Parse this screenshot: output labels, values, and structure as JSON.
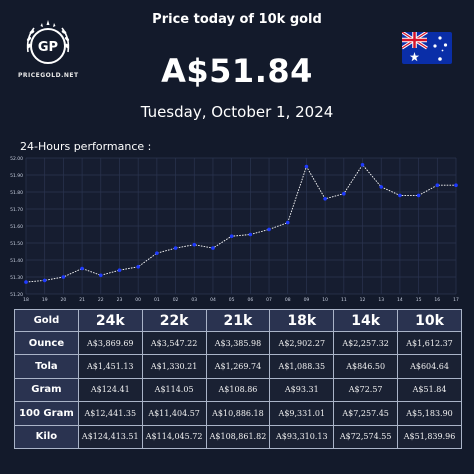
{
  "brand": {
    "logo_initials": "GP",
    "logo_text": "PRICEGOLD.NET"
  },
  "header": {
    "title": "Price today of 10k gold"
  },
  "flag_icon": "australia-flag-icon",
  "price": "A$51.84",
  "date": "Tuesday, October 1, 2024",
  "performance_label": "24-Hours performance :",
  "chart_data": {
    "type": "line",
    "x": [
      "18",
      "19",
      "20",
      "21",
      "22",
      "23",
      "00",
      "01",
      "02",
      "03",
      "04",
      "05",
      "06",
      "07",
      "08",
      "09",
      "10",
      "11",
      "12",
      "13",
      "14",
      "15",
      "16",
      "17"
    ],
    "y_ticks": [
      "51.20",
      "51.30",
      "51.40",
      "51.50",
      "51.60",
      "51.70",
      "51.80",
      "51.90",
      "52.00"
    ],
    "ylim": [
      51.2,
      52.0
    ],
    "series": [
      {
        "values": [
          51.27,
          51.28,
          51.3,
          51.35,
          51.31,
          51.34,
          51.36,
          51.44,
          51.47,
          51.49,
          51.47,
          51.54,
          51.55,
          51.58,
          51.62,
          51.95,
          51.76,
          51.79,
          51.96,
          51.83,
          51.78,
          51.78,
          51.84,
          51.84
        ],
        "color": "#ffffff",
        "marker_color": "#1f3bff"
      }
    ],
    "grid": true
  },
  "table": {
    "corner": "Gold",
    "columns": [
      "24k",
      "22k",
      "21k",
      "18k",
      "14k",
      "10k"
    ],
    "rows": [
      {
        "label": "Ounce",
        "values": [
          "A$3,869.69",
          "A$3,547.22",
          "A$3,385.98",
          "A$2,902.27",
          "A$2,257.32",
          "A$1,612.37"
        ]
      },
      {
        "label": "Tola",
        "values": [
          "A$1,451.13",
          "A$1,330.21",
          "A$1,269.74",
          "A$1,088.35",
          "A$846.50",
          "A$604.64"
        ]
      },
      {
        "label": "Gram",
        "values": [
          "A$124.41",
          "A$114.05",
          "A$108.86",
          "A$93.31",
          "A$72.57",
          "A$51.84"
        ]
      },
      {
        "label": "100 Gram",
        "values": [
          "A$12,441.35",
          "A$11,404.57",
          "A$10,886.18",
          "A$9,331.01",
          "A$7,257.45",
          "A$5,183.90"
        ]
      },
      {
        "label": "Kilo",
        "values": [
          "A$124,413.51",
          "A$114,045.72",
          "A$108,861.82",
          "A$93,310.13",
          "A$72,574.55",
          "A$51,839.96"
        ]
      }
    ]
  }
}
